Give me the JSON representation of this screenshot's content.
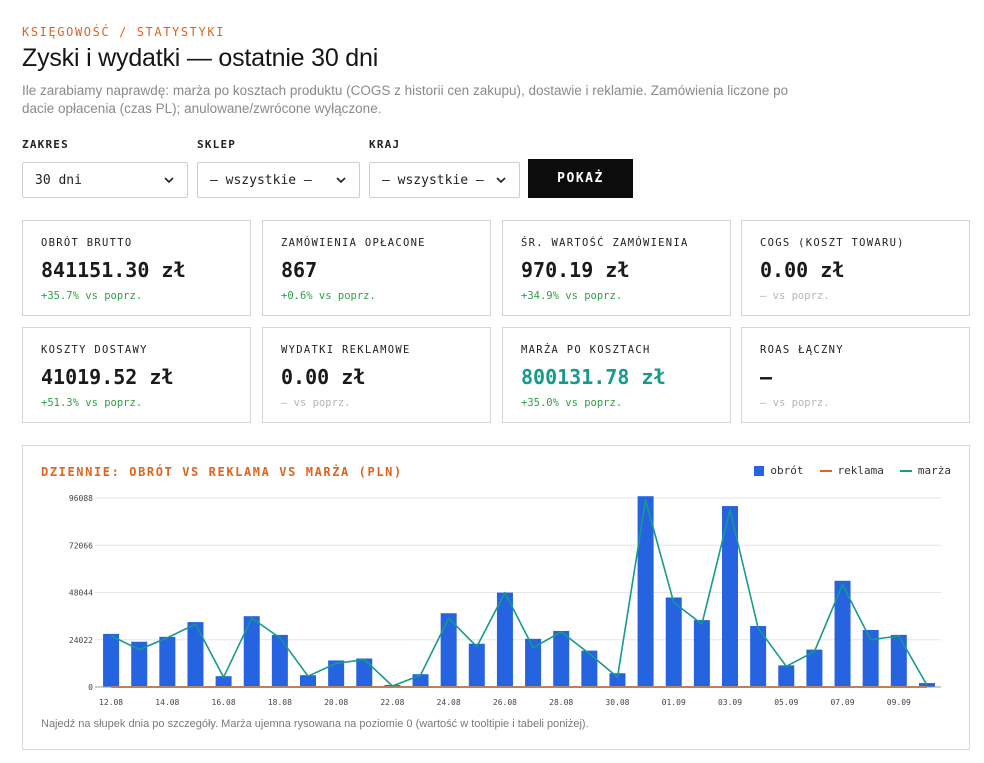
{
  "header": {
    "eyebrow": "KSIĘGOWOŚĆ / STATYSTYKI",
    "title": "Zyski i wydatki — ostatnie 30 dni",
    "subtitle": "Ile zarabiamy naprawdę: marża po kosztach produktu (COGS z historii cen zakupu), dostawie i reklamie. Zamówienia liczone po dacie opłacenia (czas PL); anulowane/zwrócone wyłączone."
  },
  "filters": {
    "range": {
      "label": "ZAKRES",
      "value": "30 dni"
    },
    "shop": {
      "label": "SKLEP",
      "value": "— wszystkie —"
    },
    "country": {
      "label": "KRAJ",
      "value": "— wszystkie —"
    },
    "submit_label": "POKAŻ"
  },
  "kpis": [
    {
      "label": "OBRÓT BRUTTO",
      "value": "841151.30 zł",
      "delta": "+35.7% vs poprz.",
      "delta_kind": "pos",
      "accent": false
    },
    {
      "label": "ZAMÓWIENIA OPŁACONE",
      "value": "867",
      "delta": "+0.6% vs poprz.",
      "delta_kind": "pos",
      "accent": false
    },
    {
      "label": "ŚR. WARTOŚĆ ZAMÓWIENIA",
      "value": "970.19 zł",
      "delta": "+34.9% vs poprz.",
      "delta_kind": "pos",
      "accent": false
    },
    {
      "label": "COGS (KOSZT TOWARU)",
      "value": "0.00 zł",
      "delta": "— vs poprz.",
      "delta_kind": "none",
      "accent": false
    },
    {
      "label": "KOSZTY DOSTAWY",
      "value": "41019.52 zł",
      "delta": "+51.3% vs poprz.",
      "delta_kind": "pos",
      "accent": false
    },
    {
      "label": "WYDATKI REKLAMOWE",
      "value": "0.00 zł",
      "delta": "— vs poprz.",
      "delta_kind": "none",
      "accent": false
    },
    {
      "label": "MARŻA PO KOSZTACH",
      "value": "800131.78 zł",
      "delta": "+35.0% vs poprz.",
      "delta_kind": "pos",
      "accent": true
    },
    {
      "label": "ROAS ŁĄCZNY",
      "value": "—",
      "delta": "— vs poprz.",
      "delta_kind": "none",
      "accent": false
    }
  ],
  "colors": {
    "accent_orange": "#e0641f",
    "bar_blue": "#2563e0",
    "margin_teal": "#169a8a",
    "delta_green": "#2f9e44"
  },
  "chart": {
    "title": "DZIENNIE: OBRÓT VS REKLAMA VS MARŻA (PLN)",
    "note": "Najedź na słupek dnia po szczegóły. Marża ujemna rysowana na poziomie 0 (wartość w tooltipie i tabeli poniżej)."
  },
  "chart_data": {
    "type": "bar",
    "categories": [
      "12.08",
      "13.08",
      "14.08",
      "15.08",
      "16.08",
      "17.08",
      "18.08",
      "19.08",
      "20.08",
      "21.08",
      "22.08",
      "23.08",
      "24.08",
      "25.08",
      "26.08",
      "27.08",
      "28.08",
      "29.08",
      "30.08",
      "31.08",
      "01.09",
      "02.09",
      "03.09",
      "04.09",
      "05.09",
      "06.09",
      "07.09",
      "08.09",
      "09.09",
      "10.09"
    ],
    "x_tick_labels": [
      "12.08",
      "14.08",
      "16.08",
      "18.08",
      "20.08",
      "22.08",
      "24.08",
      "26.08",
      "28.08",
      "30.08",
      "01.09",
      "03.09",
      "05.09",
      "07.09",
      "09.09"
    ],
    "series": [
      {
        "name": "obrót",
        "kind": "bar",
        "color": "#2563e0",
        "values": [
          27000,
          23000,
          25500,
          33000,
          5500,
          36000,
          26500,
          6000,
          13500,
          14500,
          1000,
          6500,
          37500,
          22000,
          48000,
          24500,
          28500,
          18500,
          7000,
          97000,
          45500,
          34000,
          92000,
          31000,
          11000,
          19000,
          54000,
          29000,
          26500,
          2000
        ]
      },
      {
        "name": "reklama",
        "kind": "line",
        "color": "#e0641f",
        "values": [
          0,
          0,
          0,
          0,
          0,
          0,
          0,
          0,
          0,
          0,
          0,
          0,
          0,
          0,
          0,
          0,
          0,
          0,
          0,
          0,
          0,
          0,
          0,
          0,
          0,
          0,
          0,
          0,
          0,
          0
        ]
      },
      {
        "name": "marża",
        "kind": "line",
        "color": "#169a8a",
        "values": [
          26000,
          19000,
          25000,
          32000,
          5000,
          35000,
          25000,
          5500,
          12000,
          14000,
          500,
          6000,
          35000,
          20500,
          48000,
          20000,
          28000,
          17000,
          5000,
          95000,
          43000,
          32000,
          90000,
          30000,
          10500,
          18000,
          52000,
          24000,
          26000,
          1000
        ]
      }
    ],
    "y_ticks": [
      "0",
      "24022",
      "48044",
      "72066",
      "96088"
    ],
    "ylim": [
      0,
      96088
    ],
    "grid": true,
    "legend_position": "top-right"
  }
}
